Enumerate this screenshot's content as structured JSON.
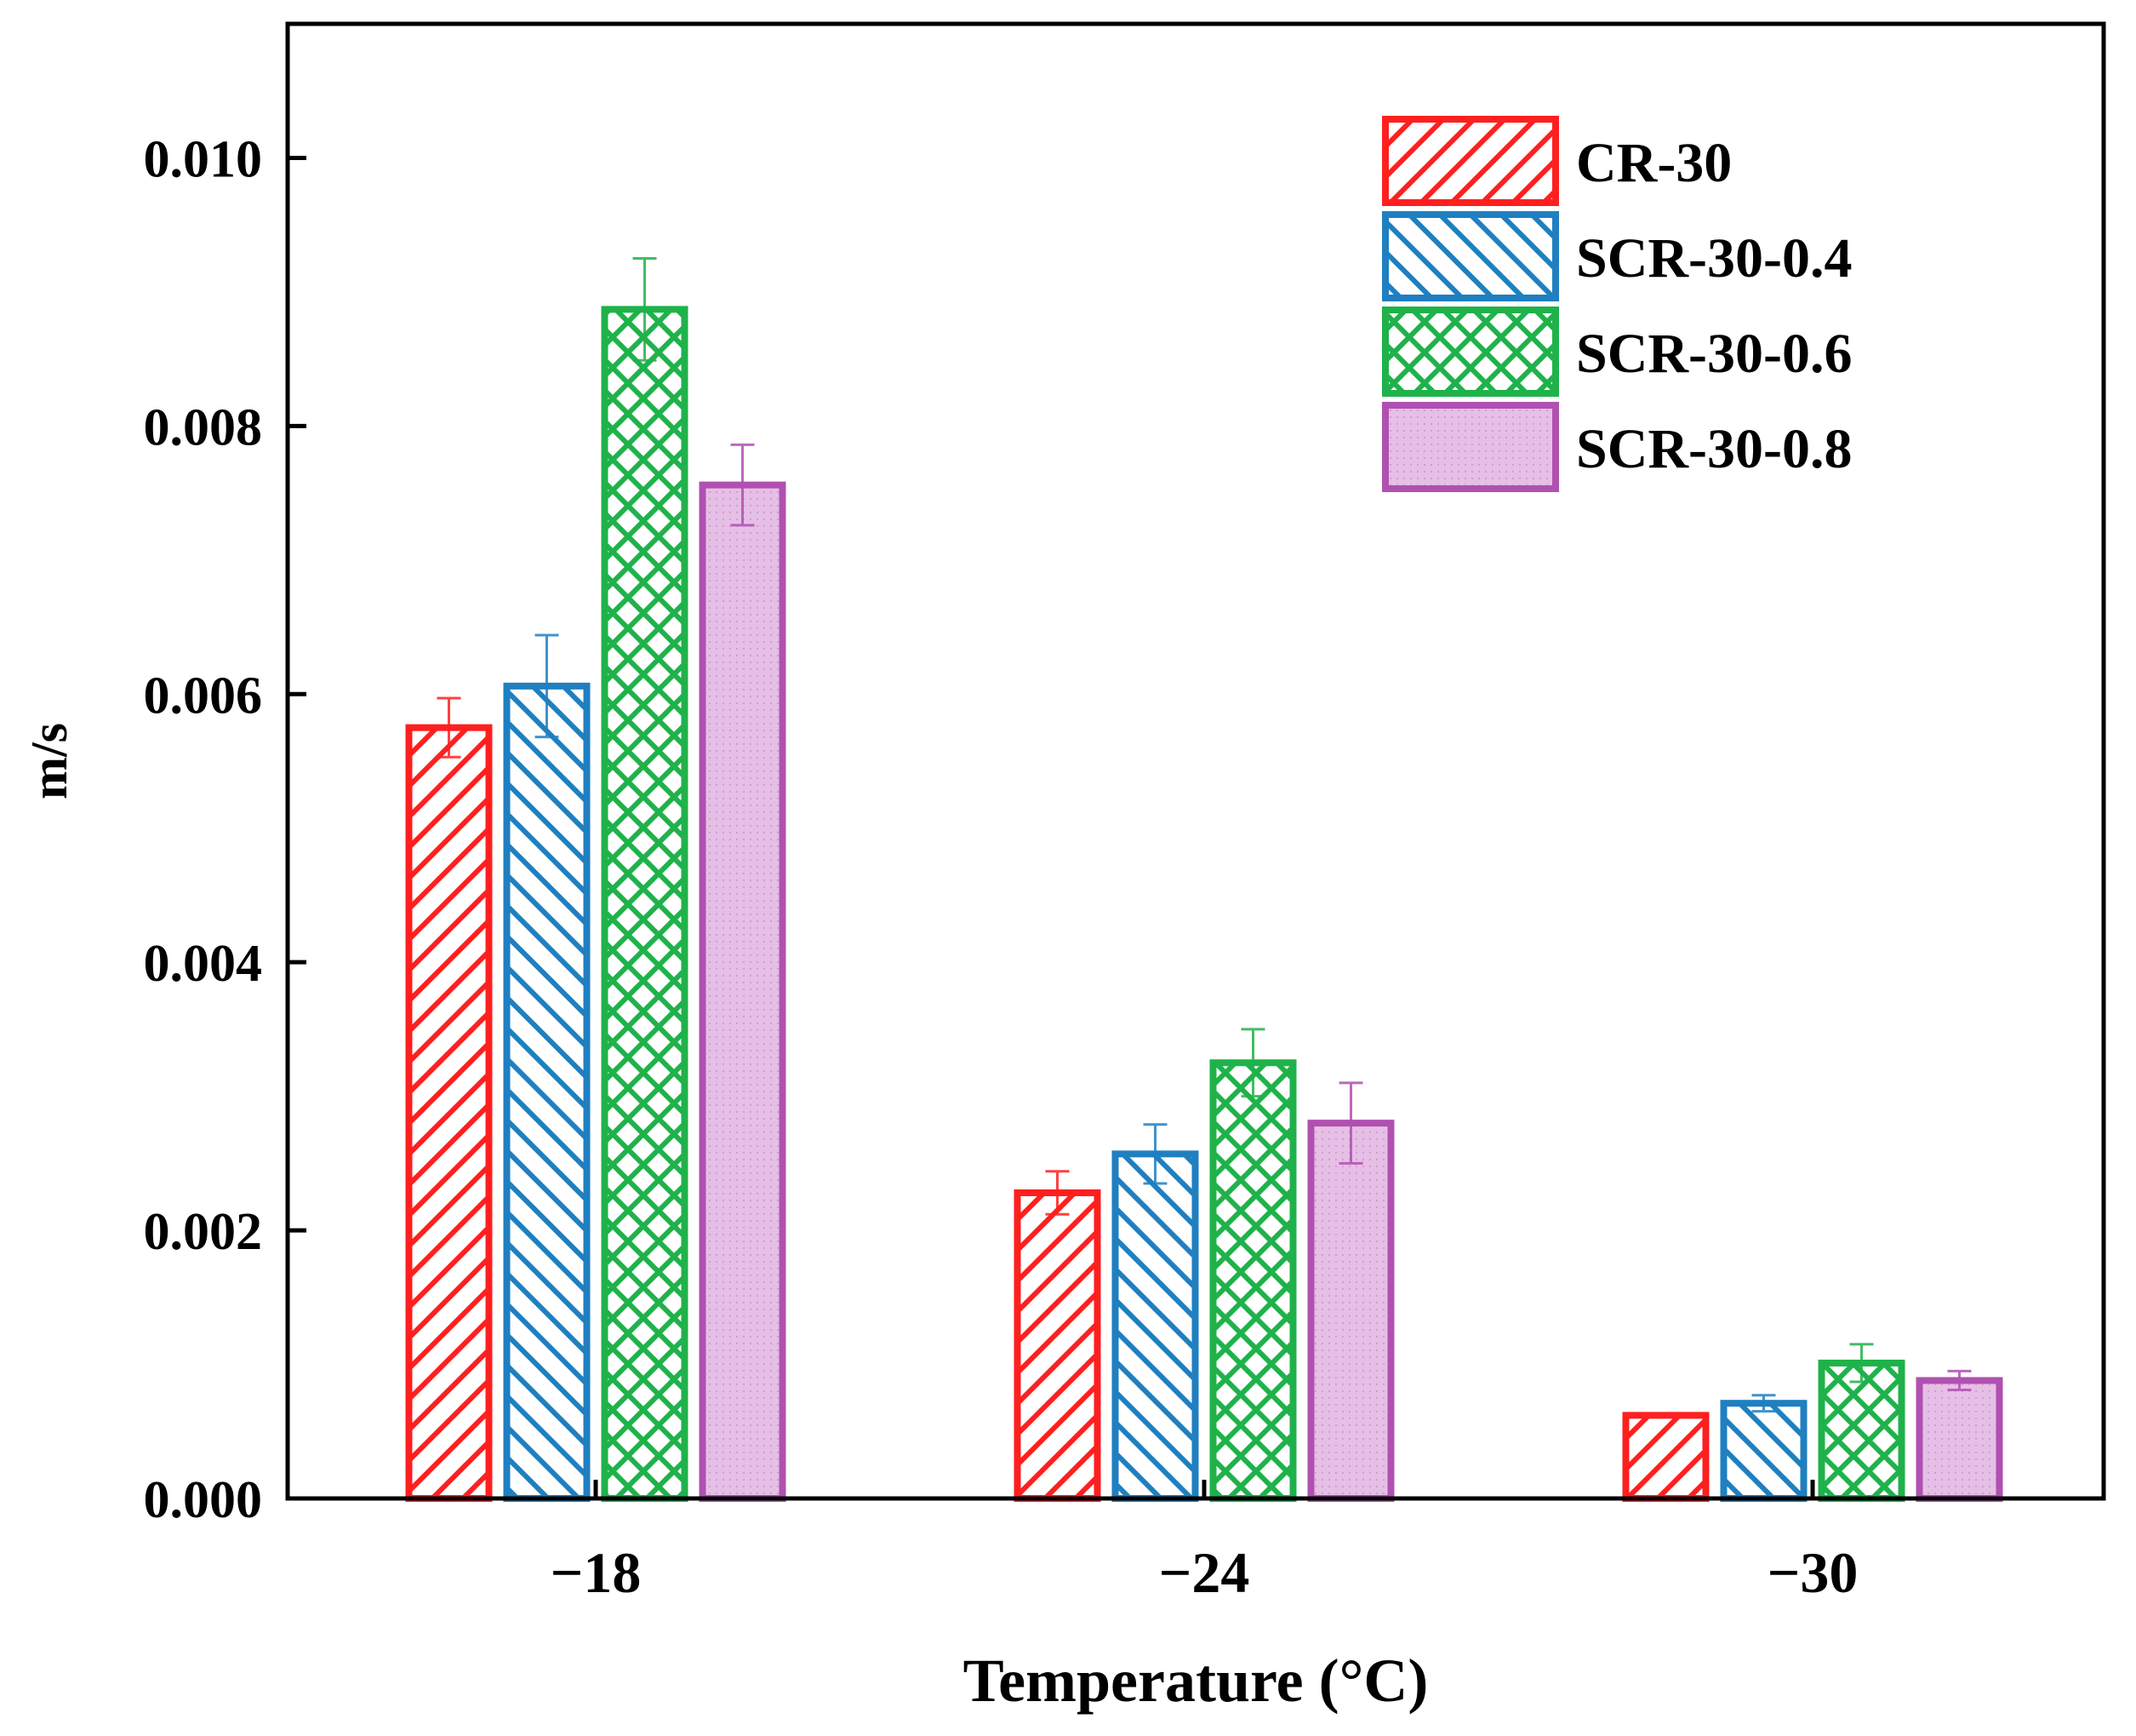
{
  "chart_data": {
    "type": "bar",
    "title": "",
    "xlabel": "Temperature (°C)",
    "ylabel": "m/s",
    "categories": [
      "−18",
      "−24",
      "−30"
    ],
    "ylim": [
      0,
      0.011
    ],
    "yticks": [
      0.0,
      0.002,
      0.004,
      0.006,
      0.008,
      0.01
    ],
    "ytick_labels": [
      "0.000",
      "0.002",
      "0.004",
      "0.006",
      "0.008",
      "0.010"
    ],
    "grid": false,
    "legend_position": "top-right",
    "series": [
      {
        "name": "CR-30",
        "color": "#ff1f1f",
        "pattern": "hatch-forward",
        "values": [
          0.00575,
          0.00228,
          0.00062
        ],
        "errors": [
          0.00022,
          0.00016,
          0.0
        ]
      },
      {
        "name": "SCR-30-0.4",
        "color": "#1f7fc0",
        "pattern": "hatch-back",
        "values": [
          0.00606,
          0.00257,
          0.00071
        ],
        "errors": [
          0.00038,
          0.00022,
          6e-05
        ]
      },
      {
        "name": "SCR-30-0.6",
        "color": "#1fb24a",
        "pattern": "crosshatch",
        "values": [
          0.00887,
          0.00325,
          0.00101
        ],
        "errors": [
          0.00038,
          0.00025,
          0.00014
        ]
      },
      {
        "name": "SCR-30-0.8",
        "color": "#b050b0",
        "fill": "#e6bfe6",
        "pattern": "dots",
        "values": [
          0.00756,
          0.0028,
          0.00088
        ],
        "errors": [
          0.0003,
          0.0003,
          7e-05
        ]
      }
    ]
  }
}
